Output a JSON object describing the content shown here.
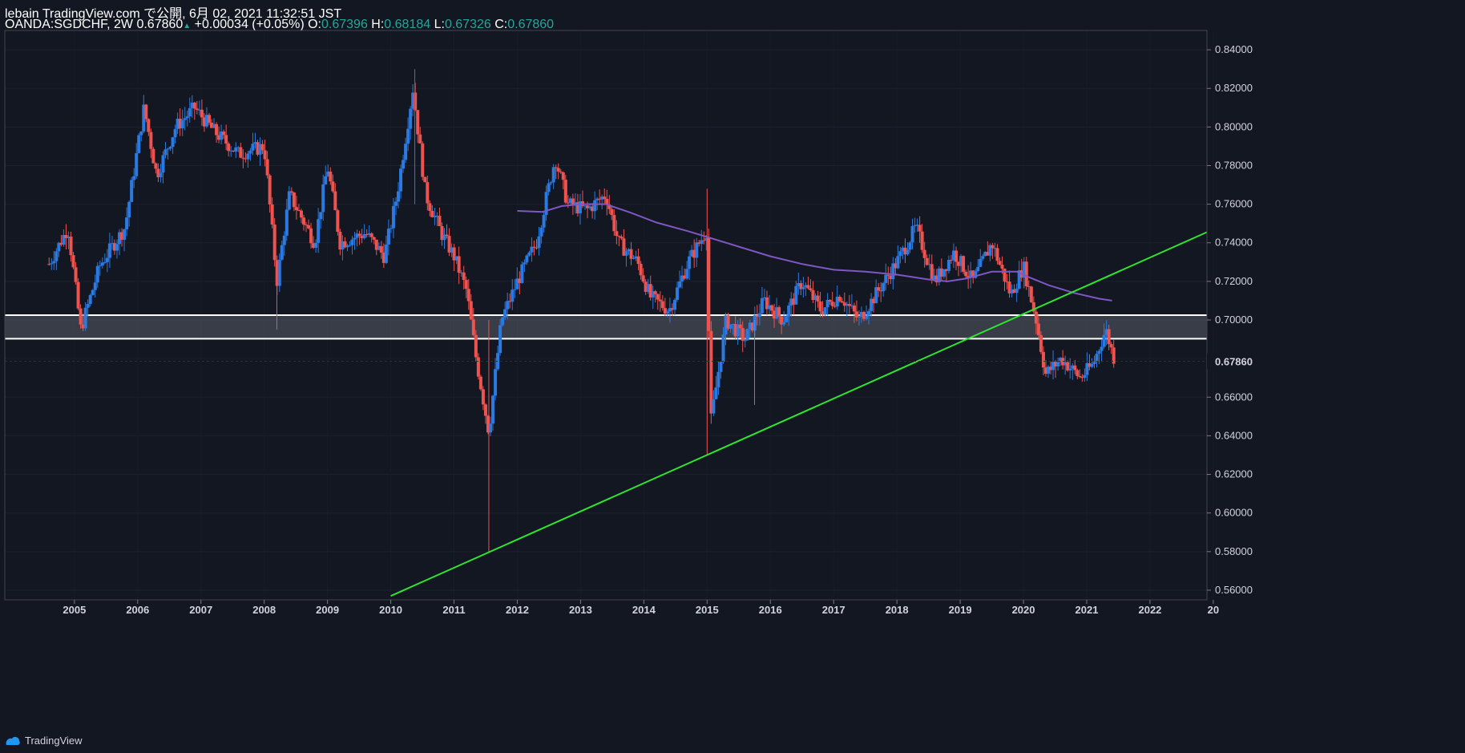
{
  "header": {
    "published": "lebain TradingView.com で公開, 6月 02, 2021 11:32:51 JST",
    "symbol": "OANDA:SGDCHF, 2W 0.67860",
    "arrow": "▲",
    "change": "+0.00034 (+0.05%)",
    "o_label": "O:",
    "o_value": "0.67396",
    "h_label": "H:",
    "h_value": "0.68184",
    "l_label": "L:",
    "l_value": "0.67326",
    "c_label": "C:",
    "c_value": "0.67860"
  },
  "footer": {
    "brand": "TradingView",
    "icon": "tradingview-logo-icon"
  },
  "colors": {
    "background": "#131722",
    "up": "#2a7ae2",
    "down": "#ef5350",
    "ma": "#7e57c2",
    "trend": "#2ee62e",
    "zone": "#ffffff"
  },
  "chart_data": {
    "type": "candlestick",
    "title": "OANDA:SGDCHF, 2W",
    "ylim": [
      0.555,
      0.85
    ],
    "xlim": [
      2003.9,
      2022.9
    ],
    "y_ticks": [
      "0.84000",
      "0.82000",
      "0.80000",
      "0.78000",
      "0.76000",
      "0.74000",
      "0.72000",
      "0.70000",
      "0.68000",
      "0.66000",
      "0.64000",
      "0.62000",
      "0.60000",
      "0.58000",
      "0.56000"
    ],
    "x_ticks": [
      "2005",
      "2006",
      "2007",
      "2008",
      "2009",
      "2010",
      "2011",
      "2012",
      "2013",
      "2014",
      "2015",
      "2016",
      "2017",
      "2018",
      "2019",
      "2020",
      "2021",
      "2022",
      "20"
    ],
    "last_price": "0.67860",
    "price_path": [
      [
        2004.6,
        0.729
      ],
      [
        2004.9,
        0.748
      ],
      [
        2005.1,
        0.695
      ],
      [
        2005.4,
        0.728
      ],
      [
        2005.8,
        0.748
      ],
      [
        2006.1,
        0.81
      ],
      [
        2006.3,
        0.775
      ],
      [
        2006.6,
        0.8
      ],
      [
        2006.9,
        0.81
      ],
      [
        2007.2,
        0.798
      ],
      [
        2007.6,
        0.786
      ],
      [
        2008.0,
        0.79
      ],
      [
        2008.2,
        0.72
      ],
      [
        2008.4,
        0.765
      ],
      [
        2008.8,
        0.74
      ],
      [
        2009.0,
        0.78
      ],
      [
        2009.2,
        0.74
      ],
      [
        2009.6,
        0.745
      ],
      [
        2009.9,
        0.733
      ],
      [
        2010.1,
        0.765
      ],
      [
        2010.35,
        0.82
      ],
      [
        2010.55,
        0.765
      ],
      [
        2010.8,
        0.745
      ],
      [
        2011.0,
        0.733
      ],
      [
        2011.2,
        0.715
      ],
      [
        2011.35,
        0.68
      ],
      [
        2011.55,
        0.642
      ],
      [
        2011.75,
        0.7
      ],
      [
        2012.0,
        0.72
      ],
      [
        2012.3,
        0.74
      ],
      [
        2012.6,
        0.784
      ],
      [
        2012.8,
        0.76
      ],
      [
        2013.1,
        0.757
      ],
      [
        2013.4,
        0.765
      ],
      [
        2013.6,
        0.74
      ],
      [
        2013.9,
        0.73
      ],
      [
        2014.1,
        0.712
      ],
      [
        2014.4,
        0.705
      ],
      [
        2014.7,
        0.73
      ],
      [
        2015.0,
        0.747
      ],
      [
        2015.05,
        0.645
      ],
      [
        2015.3,
        0.7
      ],
      [
        2015.6,
        0.69
      ],
      [
        2015.9,
        0.71
      ],
      [
        2016.2,
        0.7
      ],
      [
        2016.5,
        0.72
      ],
      [
        2016.8,
        0.705
      ],
      [
        2017.1,
        0.713
      ],
      [
        2017.4,
        0.7
      ],
      [
        2017.7,
        0.715
      ],
      [
        2018.0,
        0.73
      ],
      [
        2018.3,
        0.748
      ],
      [
        2018.6,
        0.72
      ],
      [
        2018.9,
        0.735
      ],
      [
        2019.2,
        0.72
      ],
      [
        2019.5,
        0.74
      ],
      [
        2019.8,
        0.713
      ],
      [
        2020.0,
        0.728
      ],
      [
        2020.2,
        0.7
      ],
      [
        2020.35,
        0.672
      ],
      [
        2020.6,
        0.68
      ],
      [
        2020.9,
        0.67
      ],
      [
        2021.1,
        0.677
      ],
      [
        2021.3,
        0.695
      ],
      [
        2021.45,
        0.678
      ]
    ],
    "moving_average": [
      [
        2012.0,
        0.7565
      ],
      [
        2012.4,
        0.756
      ],
      [
        2012.7,
        0.759
      ],
      [
        2013.0,
        0.76
      ],
      [
        2013.4,
        0.76
      ],
      [
        2013.8,
        0.7555
      ],
      [
        2014.2,
        0.7505
      ],
      [
        2014.7,
        0.746
      ],
      [
        2015.2,
        0.741
      ],
      [
        2015.6,
        0.737
      ],
      [
        2016.0,
        0.733
      ],
      [
        2016.5,
        0.729
      ],
      [
        2017.0,
        0.726
      ],
      [
        2017.5,
        0.725
      ],
      [
        2018.0,
        0.7235
      ],
      [
        2018.5,
        0.721
      ],
      [
        2018.8,
        0.72
      ],
      [
        2019.1,
        0.7215
      ],
      [
        2019.5,
        0.725
      ],
      [
        2019.9,
        0.725
      ],
      [
        2020.1,
        0.722
      ],
      [
        2020.4,
        0.718
      ],
      [
        2020.8,
        0.714
      ],
      [
        2021.2,
        0.711
      ],
      [
        2021.4,
        0.71
      ]
    ],
    "trendline": [
      [
        2010.0,
        0.557
      ],
      [
        2022.9,
        0.7455
      ]
    ],
    "zone": [
      0.6903,
      0.7025
    ],
    "series": [
      {
        "name": "SGDCHF 2W candles",
        "color_up": "#2a7ae2",
        "color_down": "#ef5350"
      },
      {
        "name": "Moving average",
        "color": "#7e57c2"
      },
      {
        "name": "Rising trendline",
        "color": "#2ee62e"
      },
      {
        "name": "Support/resistance zone",
        "color": "#ffffff"
      }
    ]
  }
}
